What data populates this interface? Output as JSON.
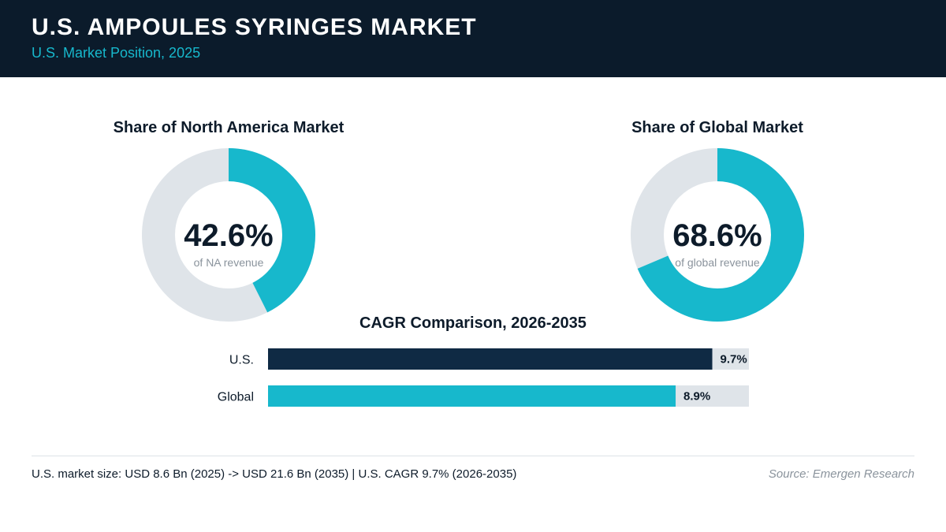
{
  "header": {
    "title": "U.S. AMPOULES SYRINGES MARKET",
    "subtitle": "U.S. Market Position, 2025"
  },
  "colors": {
    "header_bg": "#0b1b2b",
    "accent": "#17b8cc",
    "navy": "#0f2a44",
    "track": "#dfe4e9"
  },
  "chart_data": [
    {
      "type": "pie",
      "title": "Share of North America Market",
      "value": 42.6,
      "value_label": "42.6%",
      "caption": "of NA revenue"
    },
    {
      "type": "pie",
      "title": "Share of Global Market",
      "value": 68.6,
      "value_label": "68.6%",
      "caption": "of global revenue"
    },
    {
      "type": "bar",
      "title": "CAGR Comparison, 2026-2035",
      "categories": [
        "U.S.",
        "Global"
      ],
      "values": [
        9.7,
        8.9
      ],
      "value_labels": [
        "9.7%",
        "8.9%"
      ],
      "xlim": [
        0,
        10.5
      ]
    }
  ],
  "footer": {
    "note": "U.S. market size: USD 8.6 Bn (2025) -> USD 21.6 Bn (2035)  |  U.S. CAGR 9.7% (2026-2035)",
    "source": "Source: Emergen Research"
  }
}
